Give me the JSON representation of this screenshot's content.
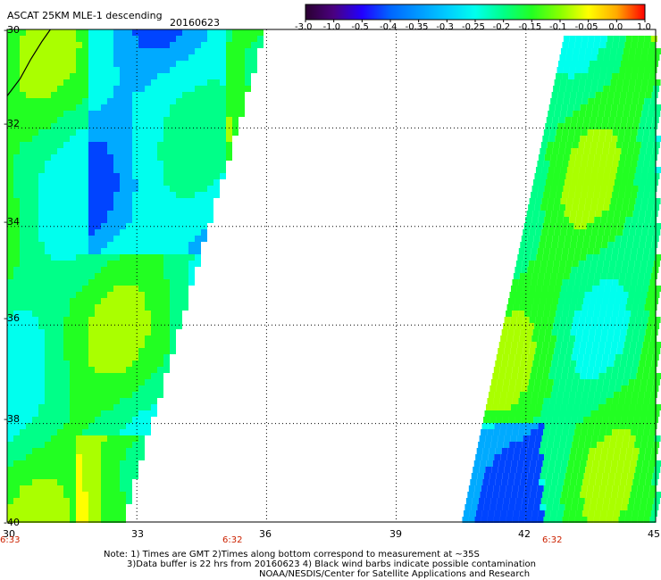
{
  "header": {
    "title": "ASCAT 25KM MLE-1 descending",
    "date": "20160623"
  },
  "colorbar": {
    "labels": [
      "-3.0",
      "-1.0",
      "-0.5",
      "-0.4",
      "-0.35",
      "-0.3",
      "-0.25",
      "-0.2",
      "-0.15",
      "-0.1",
      "-0.05",
      "0.0",
      "1.0"
    ],
    "colors": [
      "#2a0030",
      "#4a0080",
      "#2200ff",
      "#0066ff",
      "#0099ff",
      "#00ccff",
      "#00ffee",
      "#00ff88",
      "#22ff22",
      "#88ff00",
      "#ffff00",
      "#ffaa00",
      "#ff0000"
    ]
  },
  "map": {
    "lon_min": 30,
    "lon_max": 45,
    "lat_min": -40,
    "lat_max": -30,
    "lon_ticks": [
      "30",
      "33",
      "36",
      "39",
      "42",
      "45"
    ],
    "lat_ticks": [
      "-30",
      "-32",
      "-34",
      "-36",
      "-38",
      "-40"
    ],
    "time_labels": [
      "6:33",
      "6:32",
      "6:32"
    ]
  },
  "footer": {
    "line1": "Note: 1) Times are GMT 2)Times along bottom correspond to measurement at ~35S",
    "line2": "3)Data buffer is 22 hrs from 20160623 4) Black wind barbs indicate possible contamination",
    "line3": "NOAA/NESDIS/Center for Satellite Applications and Research"
  }
}
